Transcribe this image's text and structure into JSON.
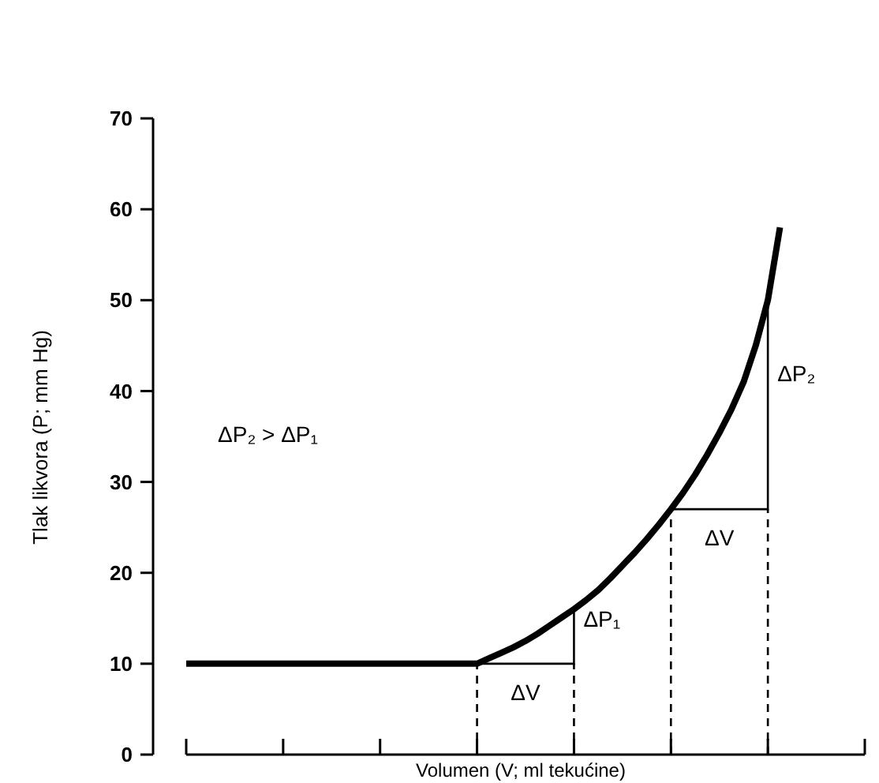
{
  "chart_data": {
    "type": "line",
    "xlabel": "Volumen (V; ml tekućine)",
    "ylabel": "Tlak likvora (P; mm Hg)",
    "categories": [
      null,
      null,
      null,
      null,
      null,
      null,
      null,
      null,
      null,
      null,
      null,
      null,
      null,
      null,
      null,
      null,
      null,
      null,
      null,
      null,
      null,
      null,
      null,
      null,
      null,
      null,
      null,
      null,
      null,
      null,
      null,
      null,
      null,
      null,
      null,
      null,
      null,
      null,
      null,
      null,
      null,
      null,
      null,
      null,
      null,
      null,
      null,
      null,
      null,
      null
    ],
    "ylim": [
      0,
      70
    ],
    "yticks": [
      0,
      10,
      20,
      30,
      40,
      50,
      60,
      70
    ],
    "grid": false,
    "series": [
      {
        "color": "#000000",
        "line_style": "solid",
        "values": [
          10,
          10,
          10,
          10,
          10,
          10,
          10,
          10,
          10,
          10,
          10,
          10,
          10,
          10,
          10,
          10,
          10,
          10,
          10,
          10,
          10,
          10,
          10,
          10,
          10,
          10.6,
          11.2,
          11.8,
          12.5,
          13.3,
          14.2,
          15.1,
          16,
          17,
          18.1,
          19.4,
          20.8,
          22.2,
          23.7,
          25.3,
          27,
          28.8,
          30.8,
          33,
          35.4,
          38,
          41,
          45,
          50,
          58
        ]
      }
    ],
    "annotations": [
      "ΔP₂ > ΔP₁",
      "ΔV",
      "ΔP₁",
      "ΔV",
      "ΔP₂"
    ]
  }
}
